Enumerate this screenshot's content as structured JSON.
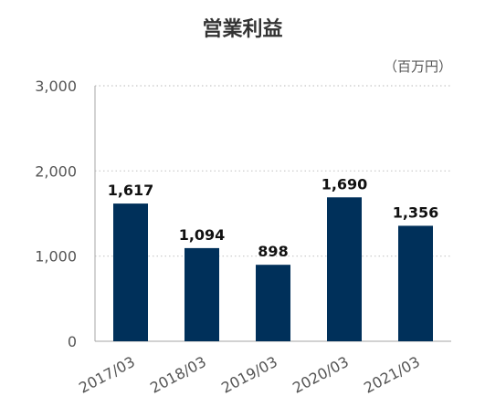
{
  "chart_data": {
    "type": "bar",
    "title": "営業利益",
    "unit": "（百万円）",
    "categories": [
      "2017/03",
      "2018/03",
      "2019/03",
      "2020/03",
      "2021/03"
    ],
    "values": [
      1617,
      1094,
      898,
      1690,
      1356
    ],
    "value_labels": [
      "1,617",
      "1,094",
      "898",
      "1,690",
      "1,356"
    ],
    "yticks": [
      "0",
      "1,000",
      "2,000",
      "3,000"
    ],
    "ylim": [
      0,
      3000
    ],
    "grid": true,
    "bar_color": "#00305a"
  }
}
